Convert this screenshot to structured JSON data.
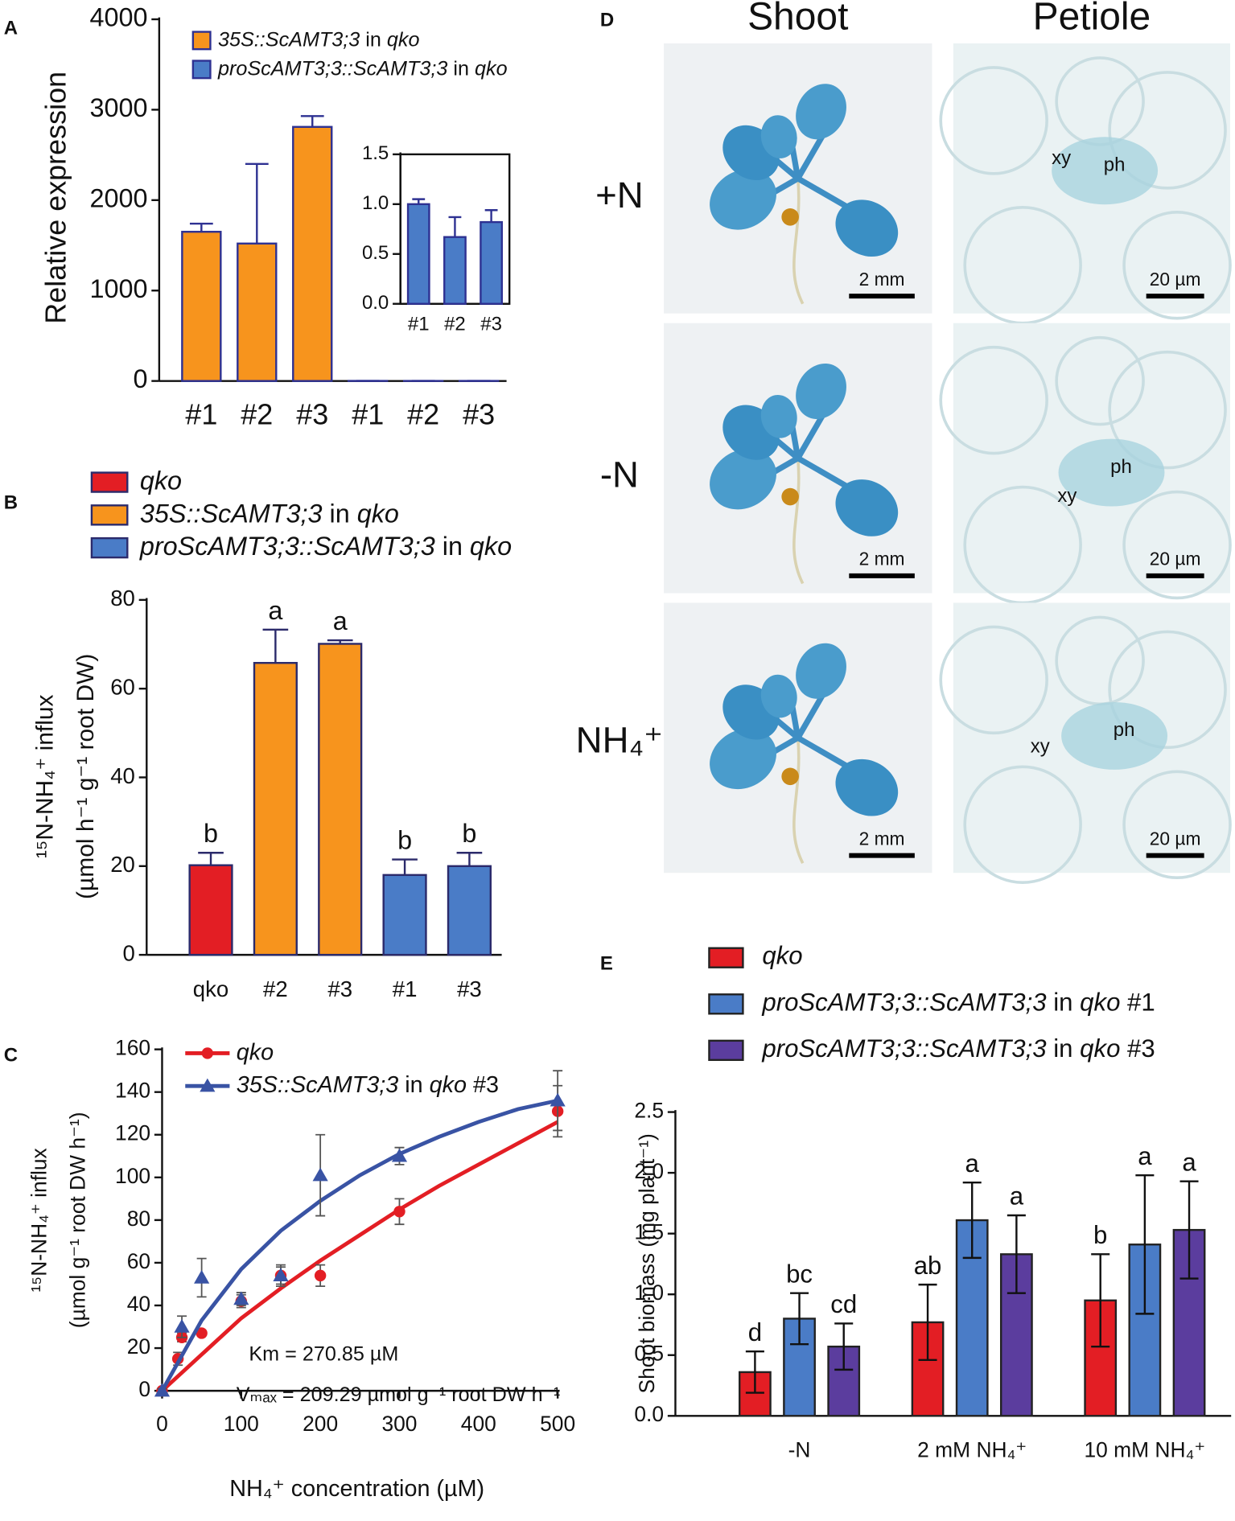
{
  "chart_data": [
    {
      "panel": "A",
      "type": "bar",
      "categories": [
        "#1",
        "#2",
        "#3",
        "#1",
        "#2",
        "#3"
      ],
      "series": [
        {
          "name": "35S::ScAMT3;3 in qko",
          "color": "#f7941d",
          "values": [
            1650,
            1520,
            2810,
            null,
            null,
            null
          ],
          "errors": [
            90,
            880,
            120,
            null,
            null,
            null
          ]
        },
        {
          "name": "proScAMT3;3::ScAMT3;3 in qko",
          "color": "#4a7cc7",
          "values": [
            null,
            null,
            null,
            1.0,
            0.67,
            0.82
          ],
          "errors": [
            null,
            null,
            null,
            0.05,
            0.2,
            0.12
          ]
        }
      ],
      "ylabel": "Relative expression",
      "ylim": [
        0,
        4000
      ],
      "yticks": [
        0,
        1000,
        2000,
        3000,
        4000
      ],
      "error_direction": "up",
      "bar_stroke": "#2e3192"
    },
    {
      "type": "bar",
      "categories": [
        "#1",
        "#2",
        "#3"
      ],
      "series": [
        {
          "color": "#4a7cc7",
          "values": [
            1.0,
            0.67,
            0.82
          ],
          "errors": [
            0.05,
            0.2,
            0.12
          ]
        }
      ],
      "ylim": [
        0,
        1.5
      ],
      "yticks": [
        {
          "value": 0,
          "label": "0.0"
        },
        {
          "value": 0.5,
          "label": "0.5"
        },
        {
          "value": 1,
          "label": "1.0"
        },
        {
          "value": 1.5,
          "label": "1.5"
        }
      ],
      "error_direction": "up",
      "bar_stroke": "#2e3192"
    },
    {
      "panel": "B",
      "type": "bar",
      "categories": [
        "qko",
        "#2",
        "#3",
        "#1",
        "#3"
      ],
      "series": [
        {
          "name": "qko",
          "color": "#e31e24",
          "values": [
            20.2,
            null,
            null,
            null,
            null
          ],
          "errors": [
            2.8,
            null,
            null,
            null,
            null
          ],
          "annotations": [
            "b",
            null,
            null,
            null,
            null
          ]
        },
        {
          "name": "35S::ScAMT3;3 in qko",
          "color": "#f7941d",
          "values": [
            null,
            65.8,
            70.1,
            null,
            null
          ],
          "errors": [
            null,
            7.5,
            0.8,
            null,
            null
          ],
          "annotations": [
            null,
            "a",
            "a",
            null,
            null
          ]
        },
        {
          "name": "proScAMT3;3::ScAMT3;3 in qko",
          "color": "#4a7cc7",
          "values": [
            null,
            null,
            null,
            18,
            20
          ],
          "errors": [
            null,
            null,
            null,
            3.5,
            3
          ],
          "annotations": [
            null,
            null,
            null,
            "b",
            "b"
          ]
        }
      ],
      "ylabel": [
        "¹⁵N-NH₄⁺ influx",
        "(µmol h⁻¹ g⁻¹ root DW)"
      ],
      "ylim": [
        0,
        80
      ],
      "yticks": [
        0,
        20,
        40,
        60,
        80
      ],
      "error_direction": "up",
      "bar_stroke": "#2b2a6b"
    },
    {
      "panel": "C",
      "type": "scatter",
      "series": [
        {
          "name": "qko",
          "color": "#e31e24",
          "marker": "circle",
          "x": [
            0,
            20,
            25,
            50,
            100,
            150,
            200,
            300,
            500
          ],
          "values": [
            0,
            15,
            25,
            27,
            42,
            54,
            54,
            84,
            131
          ],
          "errors": [
            1,
            3,
            2,
            1,
            3,
            4,
            5,
            6,
            12
          ],
          "fit_x": [
            0,
            50,
            100,
            150,
            200,
            250,
            300,
            350,
            400,
            450,
            500
          ],
          "fit_y": [
            0,
            17,
            34,
            48,
            61,
            73,
            85,
            96,
            106,
            116,
            126
          ]
        },
        {
          "name": "35S::ScAMT3;3 in qko #3",
          "color": "#3953a4",
          "marker": "triangle",
          "x": [
            0,
            25,
            50,
            100,
            150,
            200,
            300,
            500
          ],
          "values": [
            0,
            30,
            53,
            43,
            54,
            101,
            110,
            136
          ],
          "errors": [
            1,
            5,
            9,
            3,
            5,
            19,
            4,
            14
          ],
          "fit_x": [
            0,
            50,
            100,
            150,
            200,
            250,
            300,
            350,
            400,
            450,
            500
          ],
          "fit_y": [
            0,
            33,
            57,
            75,
            89,
            101,
            111,
            119,
            126,
            132,
            136
          ]
        }
      ],
      "xlabel": "NH₄⁺ concentration (µM)",
      "ylabel": [
        "¹⁵N-NH₄⁺ influx",
        "(µmol g⁻¹ root DW h⁻¹)"
      ],
      "xlim": [
        0,
        500
      ],
      "xticks": [
        0,
        100,
        200,
        300,
        400,
        500
      ],
      "ylim": [
        0,
        160
      ],
      "yticks": [
        0,
        20,
        40,
        60,
        80,
        100,
        120,
        140,
        160
      ],
      "annotations": [
        "Km = 270.85 µM",
        "Vₘₐₓ = 209.29 µmol g⁻¹ root DW h⁻¹"
      ]
    },
    {
      "panel": "E",
      "type": "bar",
      "categories": [
        "-N",
        "2 mM NH₄⁺",
        "10 mM NH₄⁺"
      ],
      "series": [
        {
          "name": "qko",
          "color": "#e31e24",
          "values": [
            0.36,
            0.77,
            0.95
          ],
          "errors": [
            0.17,
            0.31,
            0.38
          ],
          "annotations": [
            "d",
            "ab",
            "b"
          ]
        },
        {
          "name": "proScAMT3;3::ScAMT3;3 in qko #1",
          "color": "#4a7cc7",
          "values": [
            0.8,
            1.61,
            1.41
          ],
          "errors": [
            0.21,
            0.31,
            0.57
          ],
          "annotations": [
            "bc",
            "a",
            "a"
          ]
        },
        {
          "name": "proScAMT3;3::ScAMT3;3 in qko #3",
          "color": "#5b3d9e",
          "values": [
            0.57,
            1.33,
            1.53
          ],
          "errors": [
            0.19,
            0.32,
            0.4
          ],
          "annotations": [
            "cd",
            "a",
            "a"
          ]
        }
      ],
      "ylabel": "Shoot biomass (mg plant⁻¹)",
      "ylim": [
        0,
        2.5
      ],
      "yticks": [
        {
          "value": 0,
          "label": "0.0"
        },
        {
          "value": 0.5,
          "label": "0.5"
        },
        {
          "value": 1,
          "label": "1.0"
        },
        {
          "value": 1.5,
          "label": "1.5"
        },
        {
          "value": 2,
          "label": "2.0"
        },
        {
          "value": 2.5,
          "label": "2.5"
        }
      ],
      "error_direction": "both",
      "bar_stroke": "#222222"
    }
  ],
  "panel_d": {
    "label": "D",
    "columns": [
      "Shoot",
      "Petiole"
    ],
    "rows": [
      {
        "label": "+N",
        "scale_bars": [
          "2 mm",
          "20 µm"
        ],
        "tissues": [
          "xy",
          "ph"
        ]
      },
      {
        "label": "-N",
        "scale_bars": [
          "2 mm",
          "20 µm"
        ],
        "tissues": [
          "xy",
          "ph"
        ]
      },
      {
        "label": "NH₄⁺",
        "scale_bars": [
          "2 mm",
          "20 µm"
        ],
        "tissues": [
          "xy",
          "ph"
        ]
      }
    ]
  }
}
